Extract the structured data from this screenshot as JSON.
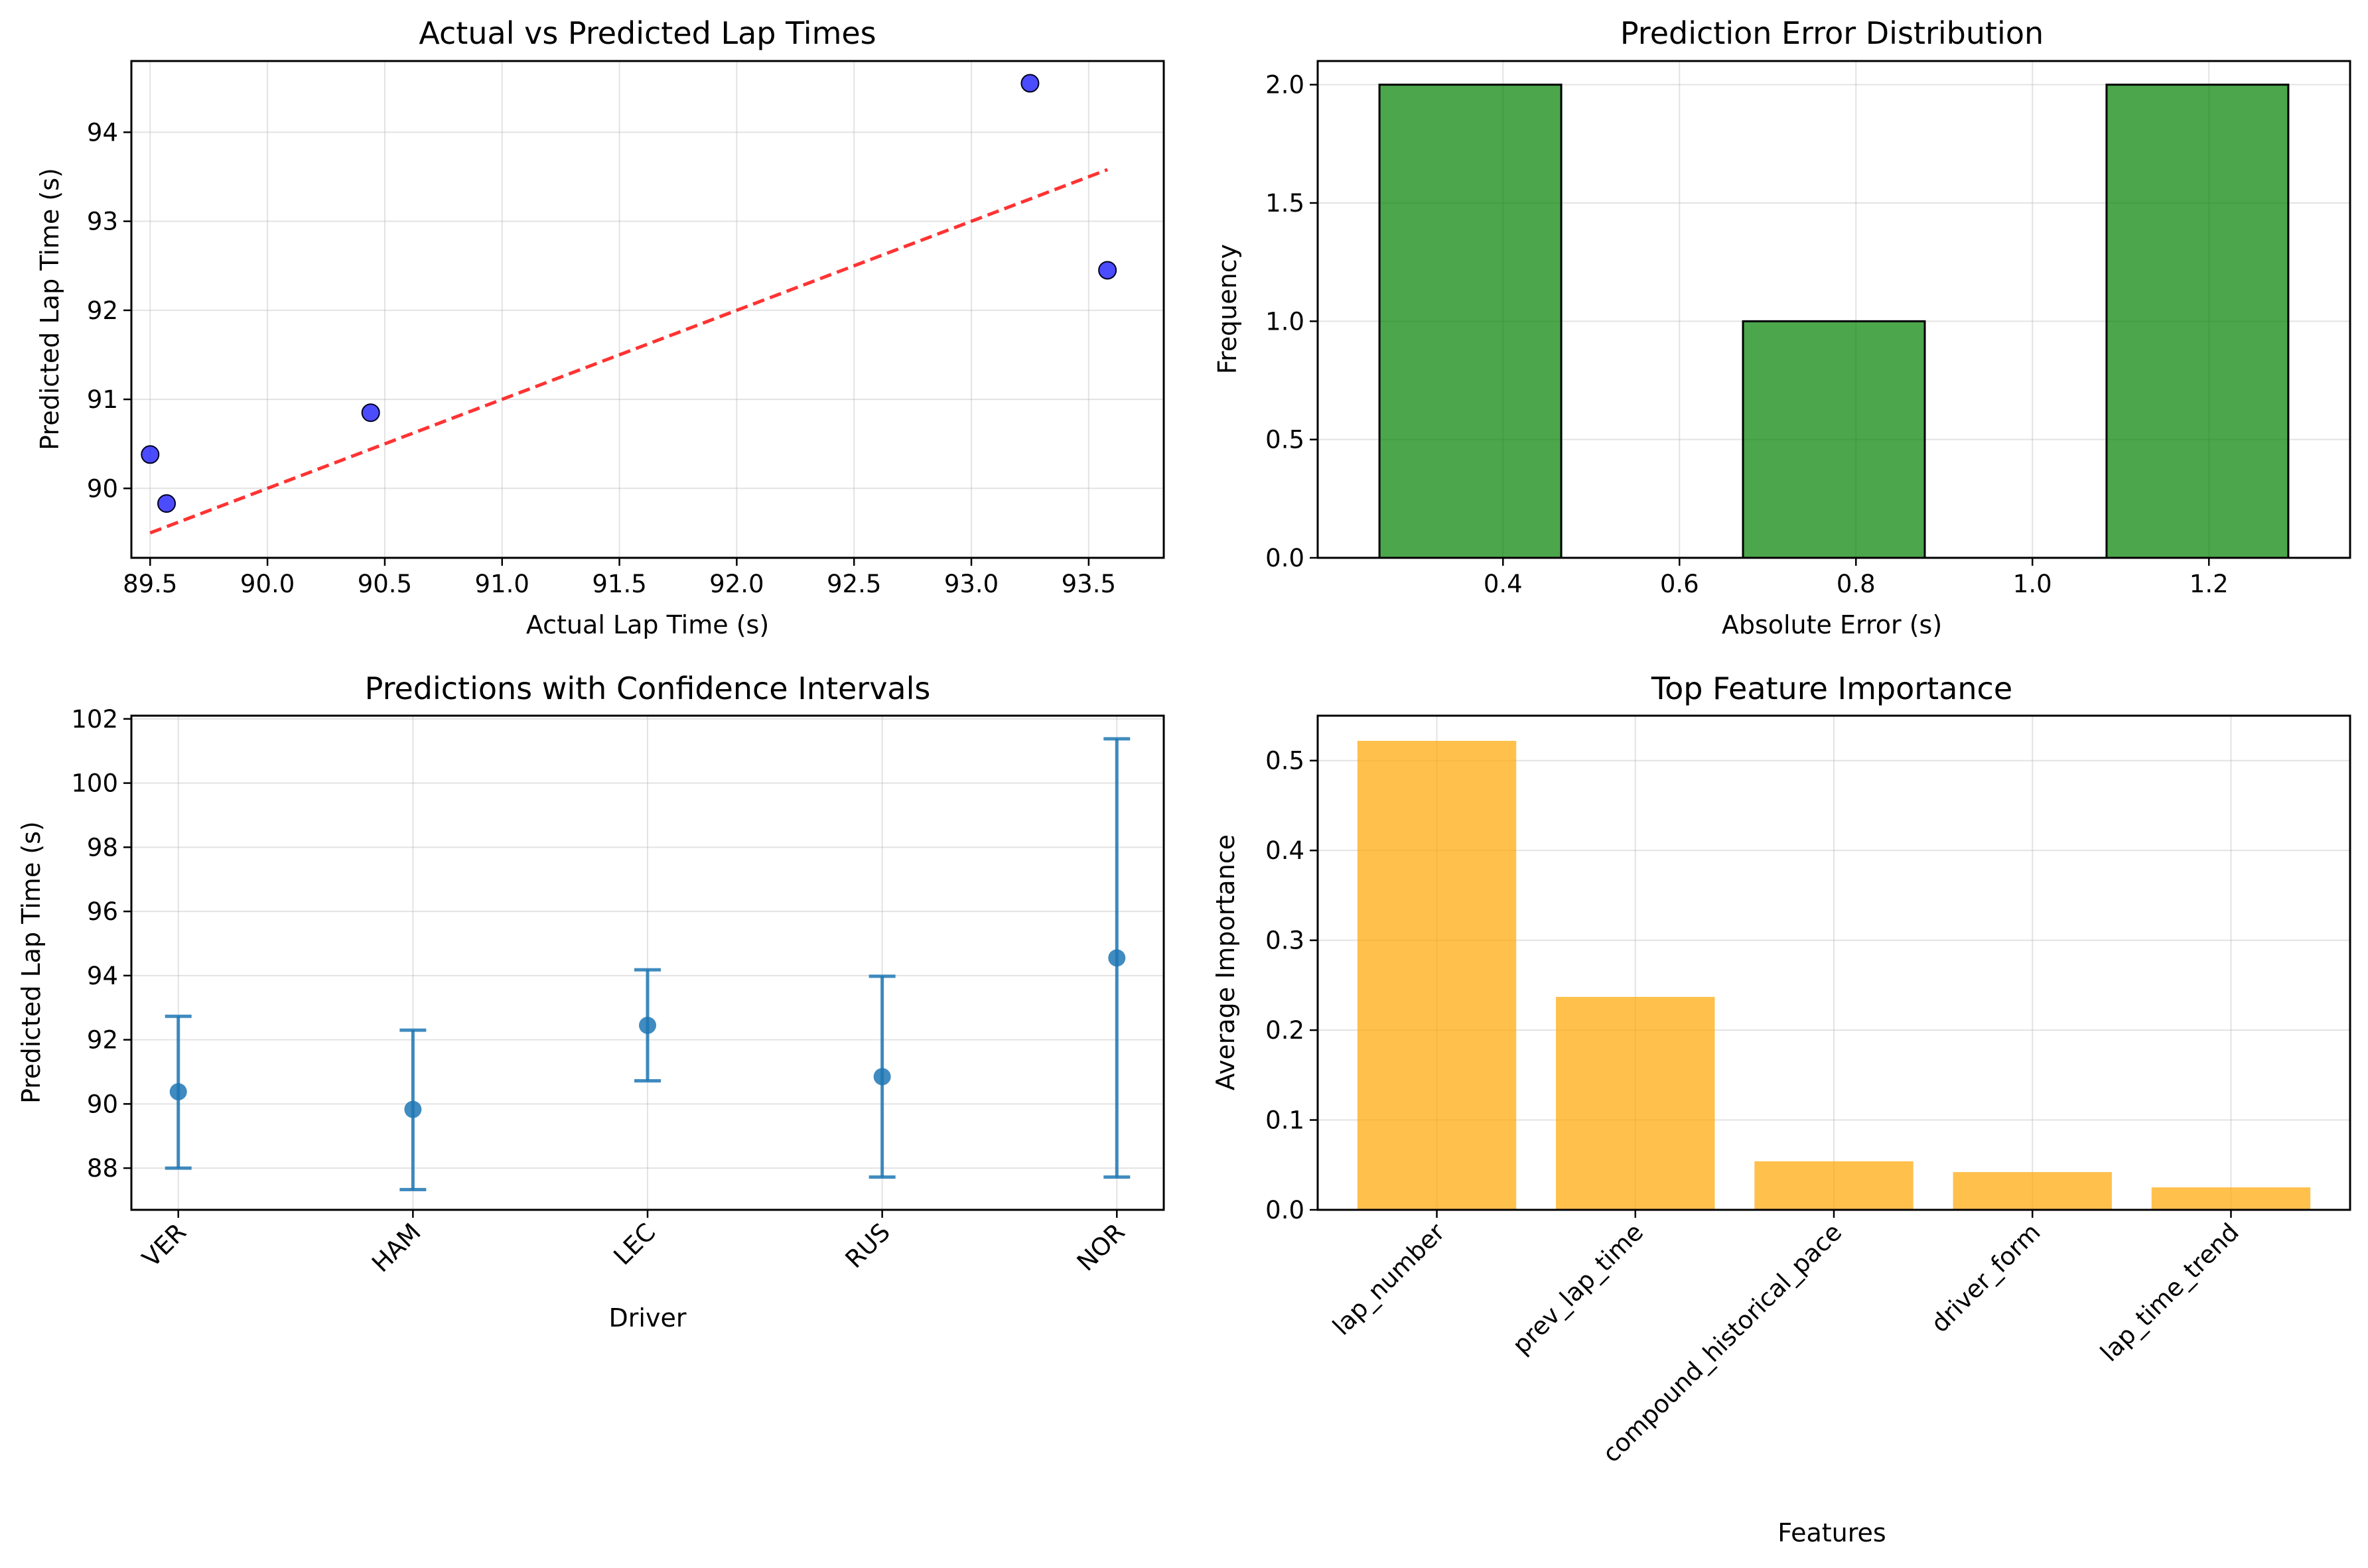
{
  "charts": [
    {
      "type": "scatter",
      "title": "Actual vs Predicted Lap Times",
      "xlabel": "Actual Lap Time (s)",
      "ylabel": "Predicted Lap Time (s)",
      "xlim": [
        89.42,
        93.82
      ],
      "ylim": [
        89.22,
        94.8
      ],
      "xticks": [
        89.5,
        90.0,
        90.5,
        91.0,
        91.5,
        92.0,
        92.5,
        93.0,
        93.5
      ],
      "xtick_labels": [
        "89.5",
        "90.0",
        "90.5",
        "91.0",
        "91.5",
        "92.0",
        "92.5",
        "93.0",
        "93.5"
      ],
      "yticks": [
        90,
        91,
        92,
        93,
        94
      ],
      "ytick_labels": [
        "90",
        "91",
        "92",
        "93",
        "94"
      ],
      "grid": true,
      "points": [
        {
          "x": 89.5,
          "y": 90.38
        },
        {
          "x": 89.57,
          "y": 89.83
        },
        {
          "x": 90.44,
          "y": 90.85
        },
        {
          "x": 93.25,
          "y": 94.55
        },
        {
          "x": 93.58,
          "y": 92.45
        }
      ],
      "reference_line": {
        "from": [
          89.5,
          89.5
        ],
        "to": [
          93.58,
          93.58
        ]
      },
      "colors": {
        "points": "#0000ff",
        "line": "#ff0000"
      }
    },
    {
      "type": "bar",
      "title": "Prediction Error Distribution",
      "xlabel": "Absolute Error (s)",
      "ylabel": "Frequency",
      "xlim": [
        0.19,
        1.36
      ],
      "ylim": [
        0,
        2.1
      ],
      "xticks": [
        0.4,
        0.6,
        0.8,
        1.0,
        1.2
      ],
      "xtick_labels": [
        "0.4",
        "0.6",
        "0.8",
        "1.0",
        "1.2"
      ],
      "yticks": [
        0,
        0.5,
        1.0,
        1.5,
        2.0
      ],
      "ytick_labels": [
        "0.0",
        "0.5",
        "1.0",
        "1.5",
        "2.0"
      ],
      "grid": true,
      "bins": [
        {
          "start": 0.26,
          "end": 0.466,
          "count": 2
        },
        {
          "start": 0.466,
          "end": 0.672,
          "count": 0
        },
        {
          "start": 0.672,
          "end": 0.878,
          "count": 1
        },
        {
          "start": 0.878,
          "end": 1.084,
          "count": 0
        },
        {
          "start": 1.084,
          "end": 1.29,
          "count": 2
        }
      ],
      "colors": {
        "fill": "#008000",
        "edge": "#000000"
      }
    },
    {
      "type": "errorbar",
      "title": "Predictions with Confidence Intervals",
      "xlabel": "Driver",
      "ylabel": "Predicted Lap Time (s)",
      "ylim": [
        86.7,
        102.1
      ],
      "categories": [
        "VER",
        "HAM",
        "LEC",
        "RUS",
        "NOR"
      ],
      "yticks": [
        88,
        90,
        92,
        94,
        96,
        98,
        100,
        102
      ],
      "ytick_labels": [
        "88",
        "90",
        "92",
        "94",
        "96",
        "98",
        "100",
        "102"
      ],
      "grid": true,
      "values": [
        90.38,
        89.83,
        92.45,
        90.85,
        94.55
      ],
      "lower": [
        88.0,
        87.33,
        90.72,
        87.72,
        87.72
      ],
      "upper": [
        92.73,
        92.3,
        94.18,
        93.98,
        101.38
      ],
      "colors": {
        "marker": "#1f77b4"
      }
    },
    {
      "type": "bar",
      "title": "Top Feature Importance",
      "xlabel": "Features",
      "ylabel": "Average Importance",
      "ylim": [
        0,
        0.55
      ],
      "categories": [
        "lap_number",
        "prev_lap_time",
        "compound_historical_pace",
        "driver_form",
        "lap_time_trend"
      ],
      "yticks": [
        0,
        0.1,
        0.2,
        0.3,
        0.4,
        0.5
      ],
      "ytick_labels": [
        "0.0",
        "0.1",
        "0.2",
        "0.3",
        "0.4",
        "0.5"
      ],
      "grid": true,
      "values": [
        0.522,
        0.237,
        0.054,
        0.042,
        0.025
      ],
      "colors": {
        "fill": "#ffa500"
      }
    }
  ]
}
